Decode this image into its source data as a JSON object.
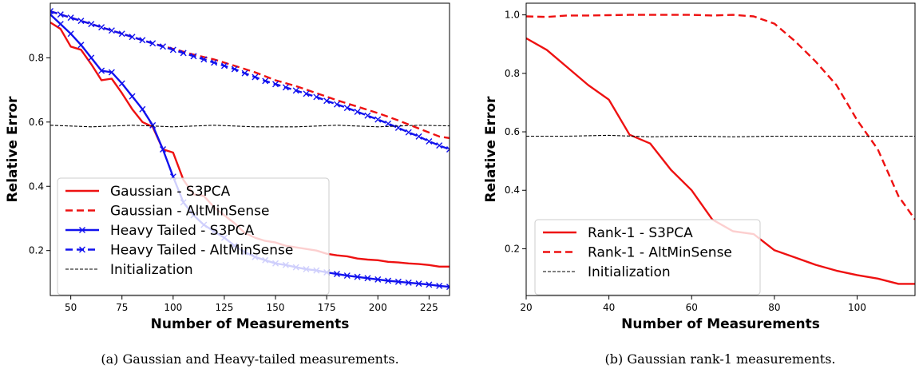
{
  "chart_data": [
    {
      "type": "line",
      "caption": "(a) Gaussian and Heavy-tailed measurements.",
      "xlabel": "Number of Measurements",
      "ylabel": "Relative Error",
      "xlim": [
        40,
        235
      ],
      "ylim": [
        0.06,
        0.97
      ],
      "xticks": [
        50,
        75,
        100,
        125,
        150,
        175,
        200,
        225
      ],
      "yticks": [
        0.2,
        0.4,
        0.6,
        0.8
      ],
      "xtick_labels": [
        "50",
        "75",
        "100",
        "125",
        "150",
        "175",
        "200",
        "225"
      ],
      "ytick_labels": [
        "0.2",
        "0.4",
        "0.6",
        "0.8"
      ],
      "legend_position": "lower-left",
      "series": [
        {
          "name": "Gaussian - S3PCA",
          "color": "#ee1111",
          "style": "solid",
          "marker": "none",
          "x": [
            40,
            45,
            50,
            55,
            60,
            65,
            70,
            75,
            80,
            85,
            90,
            95,
            100,
            105,
            110,
            115,
            120,
            125,
            130,
            135,
            140,
            145,
            150,
            155,
            160,
            165,
            170,
            175,
            180,
            185,
            190,
            195,
            200,
            205,
            210,
            215,
            220,
            225,
            230,
            235
          ],
          "y": [
            0.91,
            0.89,
            0.835,
            0.825,
            0.78,
            0.73,
            0.735,
            0.69,
            0.64,
            0.6,
            0.585,
            0.515,
            0.505,
            0.42,
            0.375,
            0.37,
            0.335,
            0.31,
            0.285,
            0.255,
            0.24,
            0.23,
            0.225,
            0.215,
            0.21,
            0.205,
            0.2,
            0.19,
            0.185,
            0.182,
            0.175,
            0.172,
            0.17,
            0.165,
            0.163,
            0.16,
            0.158,
            0.155,
            0.15,
            0.15
          ]
        },
        {
          "name": "Gaussian - AltMinSense",
          "color": "#ee1111",
          "style": "dashed",
          "marker": "none",
          "x": [
            40,
            50,
            60,
            70,
            80,
            90,
            100,
            110,
            120,
            130,
            140,
            150,
            160,
            170,
            180,
            190,
            200,
            210,
            220,
            230,
            235
          ],
          "y": [
            0.945,
            0.925,
            0.905,
            0.885,
            0.865,
            0.845,
            0.828,
            0.81,
            0.795,
            0.775,
            0.755,
            0.73,
            0.712,
            0.69,
            0.668,
            0.648,
            0.628,
            0.605,
            0.58,
            0.555,
            0.55
          ]
        },
        {
          "name": "Heavy Tailed - S3PCA",
          "color": "#1111ee",
          "style": "solid",
          "marker": "x",
          "x": [
            40,
            45,
            50,
            55,
            60,
            65,
            70,
            75,
            80,
            85,
            90,
            95,
            100,
            105,
            110,
            115,
            120,
            125,
            130,
            135,
            140,
            145,
            150,
            155,
            160,
            165,
            170,
            175,
            180,
            185,
            190,
            195,
            200,
            205,
            210,
            215,
            220,
            225,
            230,
            235
          ],
          "y": [
            0.935,
            0.905,
            0.875,
            0.84,
            0.8,
            0.76,
            0.755,
            0.72,
            0.68,
            0.64,
            0.59,
            0.515,
            0.43,
            0.35,
            0.31,
            0.28,
            0.26,
            0.24,
            0.215,
            0.195,
            0.18,
            0.17,
            0.16,
            0.155,
            0.148,
            0.142,
            0.138,
            0.132,
            0.127,
            0.122,
            0.118,
            0.114,
            0.11,
            0.106,
            0.103,
            0.1,
            0.097,
            0.094,
            0.09,
            0.087
          ]
        },
        {
          "name": "Heavy Tailed - AltMinSense",
          "color": "#1111ee",
          "style": "dashed",
          "marker": "x",
          "x": [
            40,
            45,
            50,
            55,
            60,
            65,
            70,
            75,
            80,
            85,
            90,
            95,
            100,
            105,
            110,
            115,
            120,
            125,
            130,
            135,
            140,
            145,
            150,
            155,
            160,
            165,
            170,
            175,
            180,
            185,
            190,
            195,
            200,
            205,
            210,
            215,
            220,
            225,
            230,
            235
          ],
          "y": [
            0.945,
            0.935,
            0.925,
            0.915,
            0.905,
            0.895,
            0.885,
            0.875,
            0.865,
            0.855,
            0.845,
            0.835,
            0.825,
            0.815,
            0.805,
            0.795,
            0.785,
            0.775,
            0.765,
            0.752,
            0.74,
            0.728,
            0.718,
            0.708,
            0.698,
            0.688,
            0.678,
            0.666,
            0.655,
            0.644,
            0.632,
            0.62,
            0.608,
            0.595,
            0.582,
            0.568,
            0.555,
            0.54,
            0.527,
            0.515
          ]
        },
        {
          "name": "Initialization",
          "color": "#000000",
          "style": "dashed-thin",
          "marker": "none",
          "x": [
            40,
            60,
            80,
            100,
            120,
            140,
            160,
            180,
            200,
            220,
            235
          ],
          "y": [
            0.59,
            0.585,
            0.59,
            0.585,
            0.59,
            0.585,
            0.585,
            0.59,
            0.585,
            0.59,
            0.588
          ]
        }
      ]
    },
    {
      "type": "line",
      "caption": "(b) Gaussian rank-1 measurements.",
      "xlabel": "Number of Measurements",
      "ylabel": "Relative Error",
      "xlim": [
        20,
        114
      ],
      "ylim": [
        0.04,
        1.04
      ],
      "xticks": [
        20,
        40,
        60,
        80,
        100
      ],
      "yticks": [
        0.2,
        0.4,
        0.6,
        0.8,
        1.0
      ],
      "xtick_labels": [
        "20",
        "40",
        "60",
        "80",
        "100"
      ],
      "ytick_labels": [
        "0.2",
        "0.4",
        "0.6",
        "0.8",
        "1.0"
      ],
      "legend_position": "lower-left",
      "series": [
        {
          "name": "Rank-1 - S3PCA",
          "color": "#ee1111",
          "style": "solid",
          "marker": "none",
          "x": [
            20,
            25,
            30,
            35,
            40,
            45,
            50,
            55,
            60,
            65,
            70,
            75,
            80,
            85,
            90,
            95,
            100,
            105,
            110,
            114
          ],
          "y": [
            0.92,
            0.88,
            0.82,
            0.76,
            0.71,
            0.59,
            0.56,
            0.47,
            0.4,
            0.3,
            0.26,
            0.25,
            0.195,
            0.17,
            0.145,
            0.125,
            0.11,
            0.098,
            0.08,
            0.08
          ]
        },
        {
          "name": "Rank-1 - AltMinSense",
          "color": "#ee1111",
          "style": "dashed",
          "marker": "none",
          "x": [
            20,
            25,
            30,
            35,
            40,
            45,
            50,
            55,
            60,
            65,
            70,
            75,
            80,
            85,
            90,
            95,
            100,
            105,
            110,
            114
          ],
          "y": [
            0.995,
            0.993,
            0.998,
            0.998,
            0.999,
            1.0,
            1.0,
            1.0,
            1.0,
            0.998,
            1.0,
            0.995,
            0.97,
            0.91,
            0.84,
            0.76,
            0.64,
            0.54,
            0.38,
            0.3
          ]
        },
        {
          "name": "Initialization",
          "color": "#000000",
          "style": "dashed-thin",
          "marker": "none",
          "x": [
            20,
            30,
            40,
            50,
            60,
            70,
            80,
            90,
            100,
            110,
            114
          ],
          "y": [
            0.585,
            0.585,
            0.588,
            0.583,
            0.585,
            0.583,
            0.585,
            0.585,
            0.585,
            0.585,
            0.585
          ]
        }
      ]
    }
  ]
}
